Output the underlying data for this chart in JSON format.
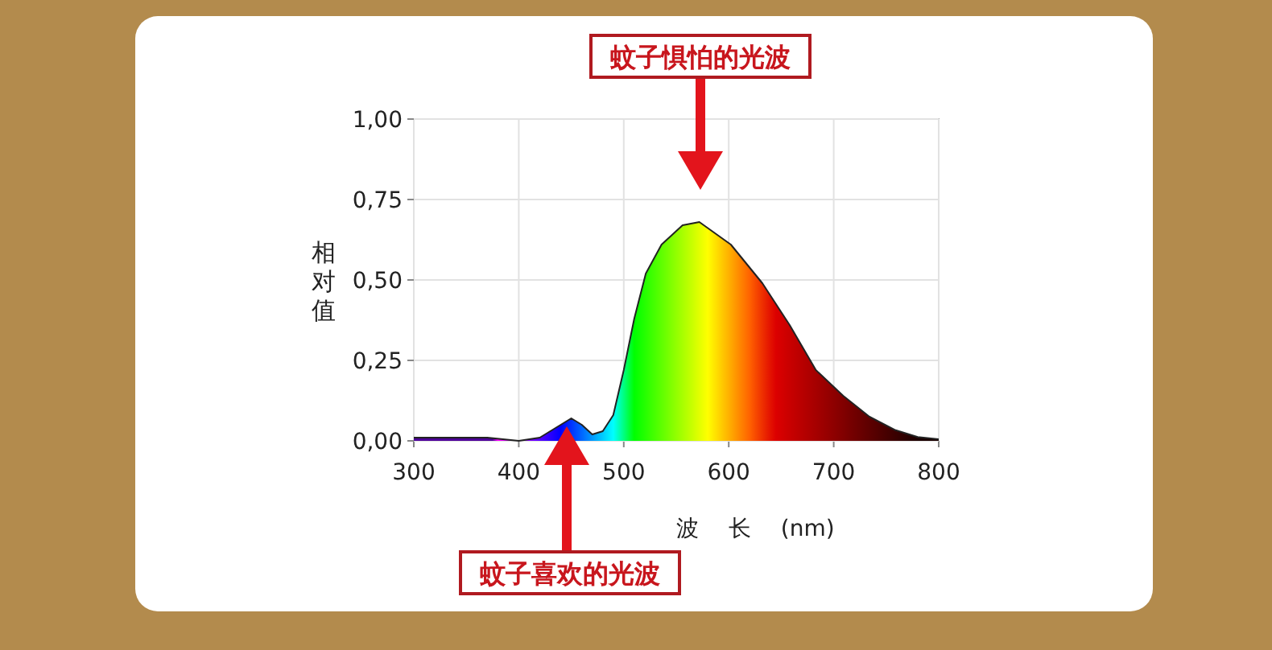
{
  "chart_data": {
    "type": "area",
    "xlabel": "波 长 (nm)",
    "ylabel": "相对值",
    "series": [
      {
        "color": "#222222",
        "x": [
          300,
          370,
          400,
          420,
          440,
          450,
          460,
          470,
          480,
          490,
          495,
          500,
          510,
          521,
          536,
          556,
          572,
          602,
          632,
          658,
          683,
          709,
          734,
          759,
          780,
          800
        ],
        "values": [
          0.01,
          0.01,
          0,
          0.01,
          0.05,
          0.07,
          0.05,
          0.02,
          0.03,
          0.08,
          0.15,
          0.22,
          0.38,
          0.52,
          0.61,
          0.67,
          0.68,
          0.61,
          0.49,
          0.36,
          0.22,
          0.14,
          0.075,
          0.033,
          0.012,
          0.005
        ]
      }
    ],
    "xlim": [
      300,
      800
    ],
    "xticks": [
      300,
      400,
      500,
      600,
      700,
      800
    ],
    "ylim": [
      0,
      1
    ],
    "yticks": [
      {
        "value": 0,
        "label": "0,00"
      },
      {
        "value": 0.25,
        "label": "0,25"
      },
      {
        "value": 0.5,
        "label": "0,50"
      },
      {
        "value": 0.75,
        "label": "0,75"
      },
      {
        "value": 1,
        "label": "1,00"
      }
    ],
    "grid": true,
    "annotations": [
      "蚊子惧怕的光波",
      "蚊子喜欢的光波"
    ]
  }
}
